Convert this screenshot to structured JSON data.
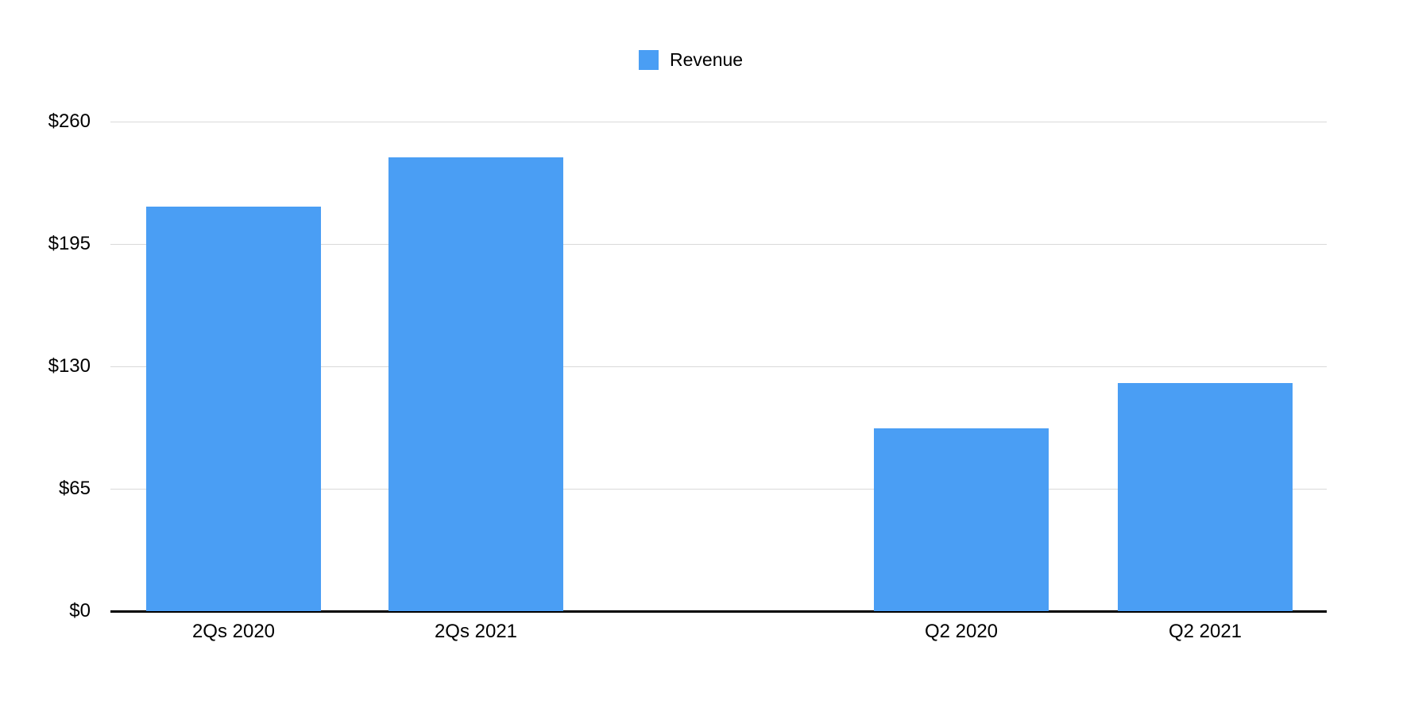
{
  "chart_data": {
    "type": "bar",
    "title": "",
    "legend": {
      "label": "Revenue",
      "position": "top-center"
    },
    "categories": [
      "2Qs 2020",
      "2Qs 2021",
      "Q2 2020",
      "Q2 2021"
    ],
    "series": [
      {
        "name": "Revenue",
        "color": "#4A9EF4",
        "values": [
          215,
          241,
          97,
          121
        ]
      }
    ],
    "y_axis": {
      "unit_prefix": "$",
      "tick_values": [
        260,
        195,
        130,
        65,
        0
      ],
      "tick_labels": [
        "$260",
        "$195",
        "$130",
        "$65",
        "$0"
      ],
      "range": [
        0,
        260
      ]
    },
    "x_axis": {
      "groups": [
        [
          "2Qs 2020",
          "2Qs 2021"
        ],
        [
          "Q2 2020",
          "Q2 2021"
        ]
      ]
    },
    "grid": true,
    "colors": {
      "bar": "#4A9EF4",
      "gridline": "#d9d9d9",
      "axis_line": "#000000",
      "text": "#000000",
      "background": "#ffffff"
    }
  }
}
